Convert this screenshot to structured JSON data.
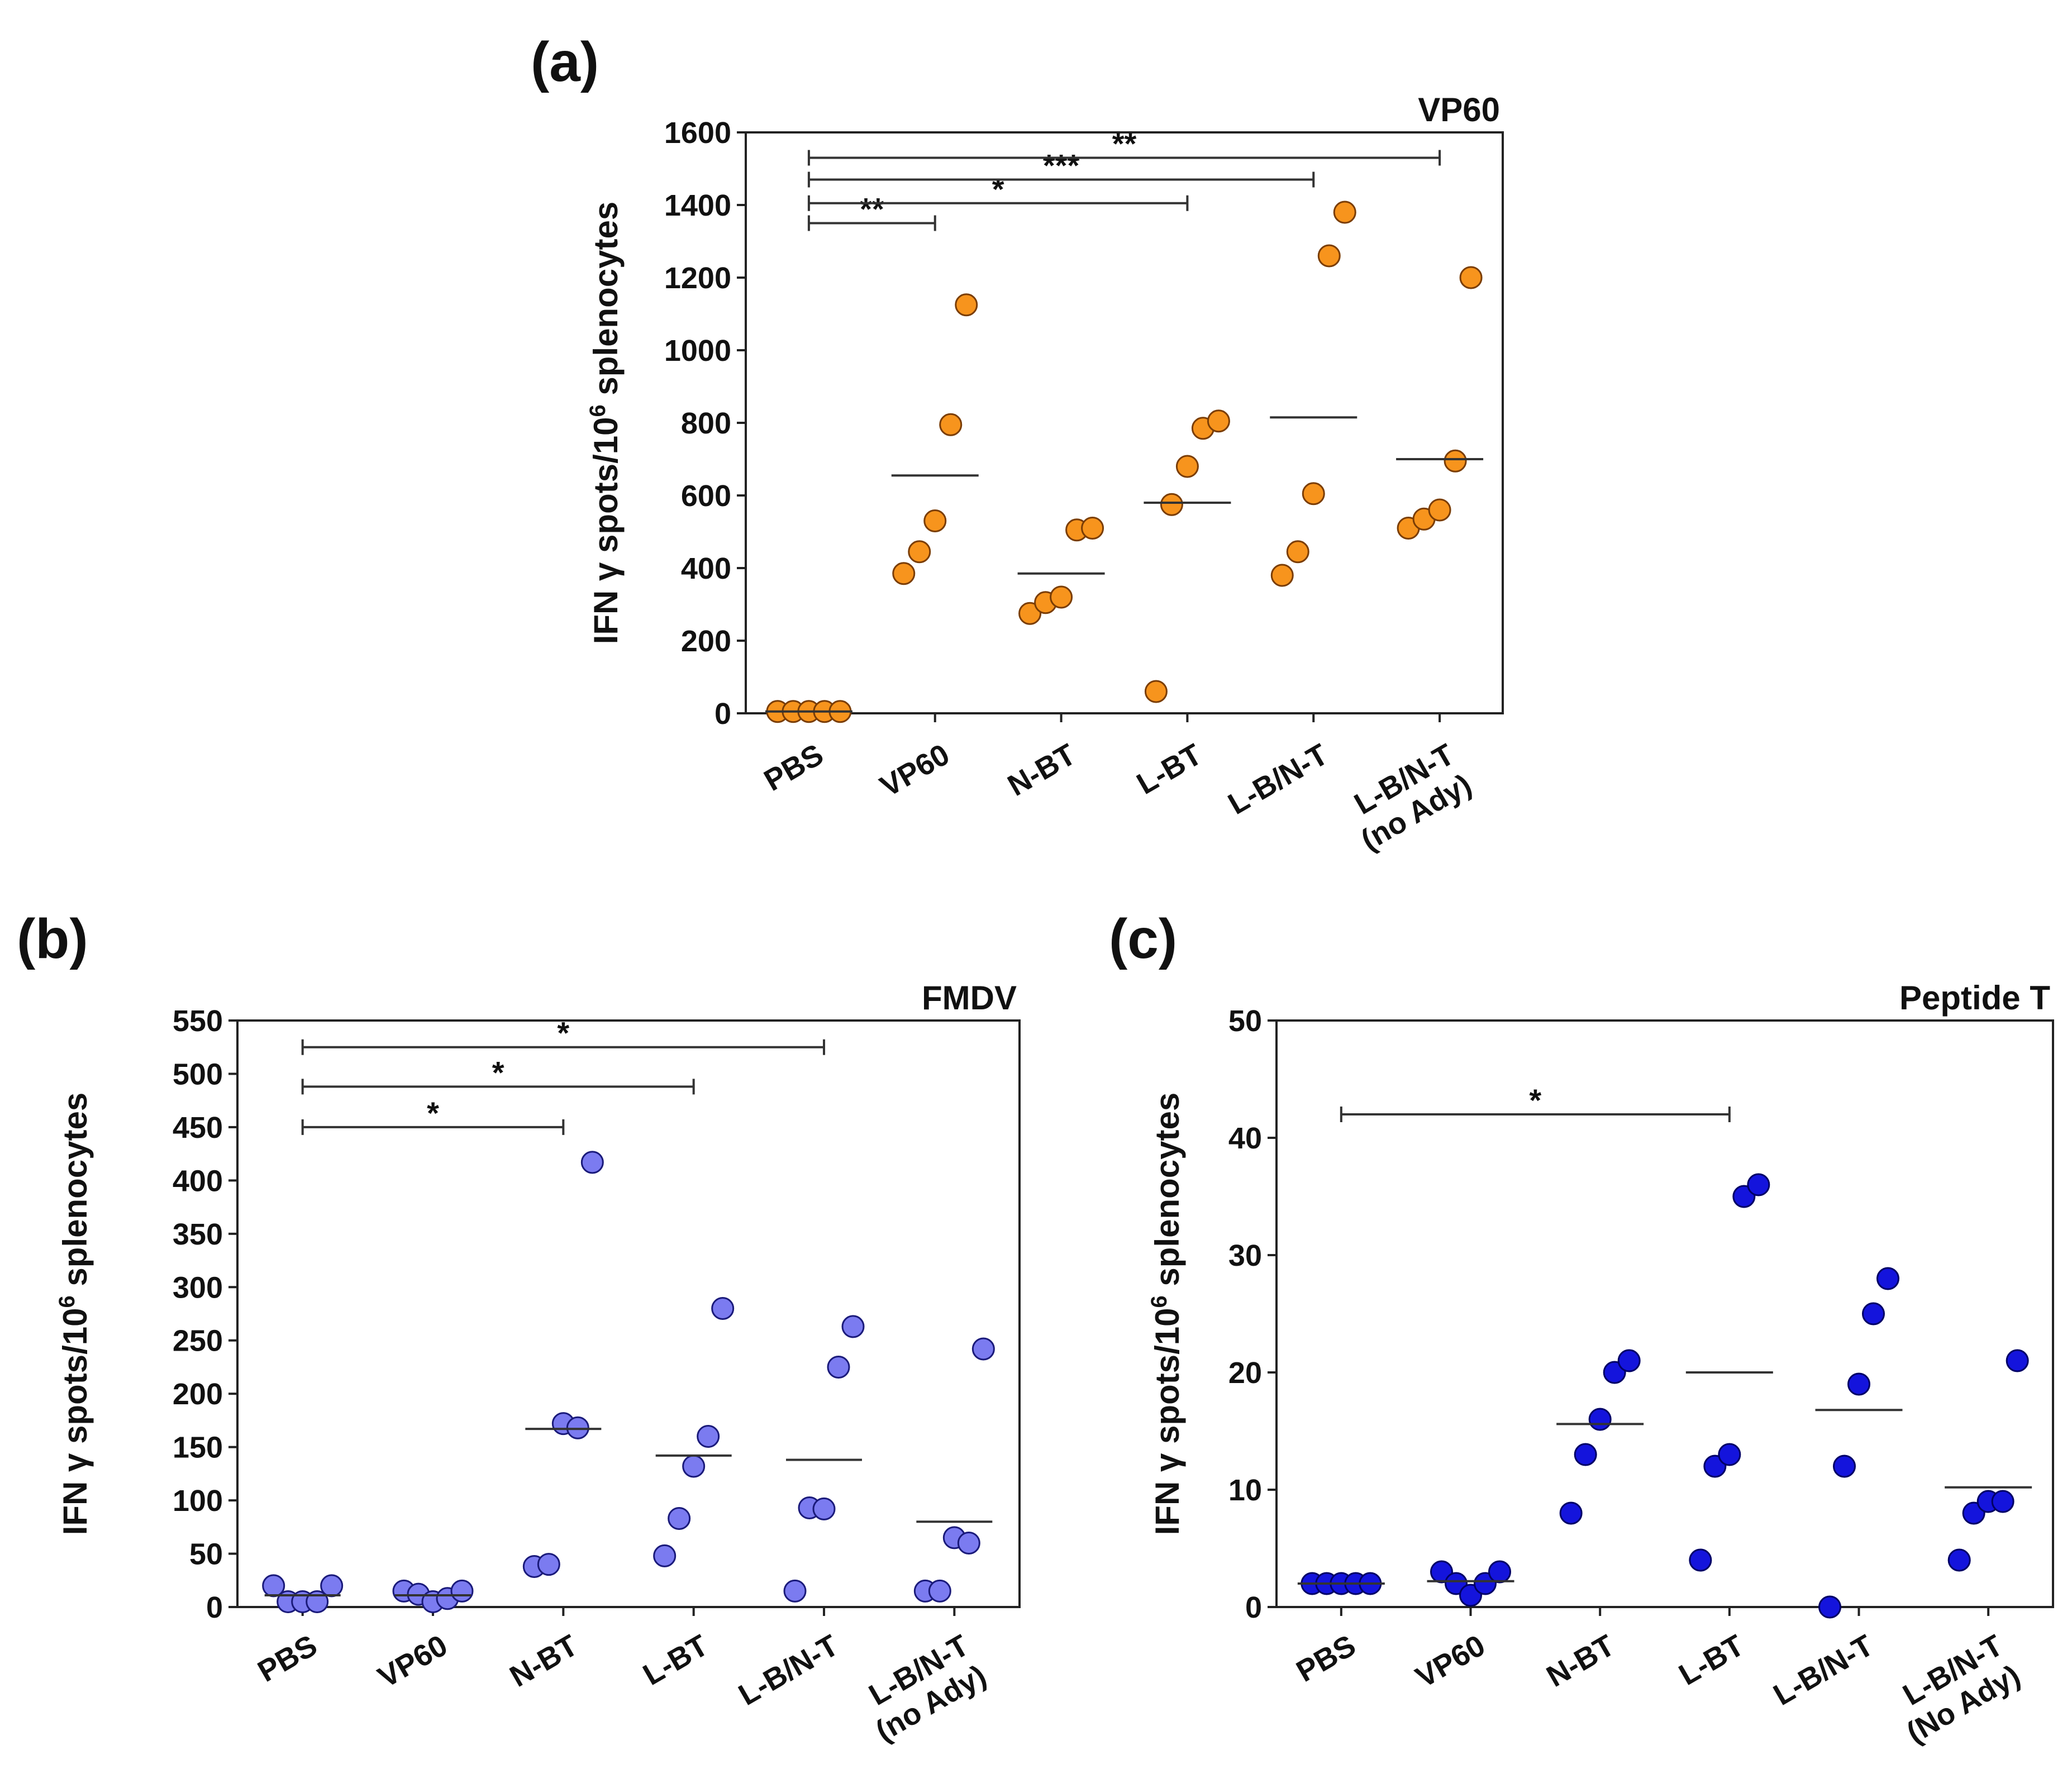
{
  "panels": [
    {
      "letter": "(a)",
      "ylabel_prefix": "IFN γ spots/10",
      "ylabel_sup": "6",
      "ylabel_suffix": " splenocytes",
      "point_fill": "#f7941d",
      "point_stroke": "#7a3d05",
      "chart_data": {
        "type": "scatter",
        "title": "VP60",
        "ylabel": "IFN γ spots/10^6 splenocytes",
        "ylim": [
          0,
          1600
        ],
        "yticks": [
          0,
          200,
          400,
          600,
          800,
          1000,
          1200,
          1400,
          1600
        ],
        "categories": [
          [
            "PBS"
          ],
          [
            "VP60"
          ],
          [
            "N-BT"
          ],
          [
            "L-BT"
          ],
          [
            "L-B/N-T"
          ],
          [
            "L-B/N-T",
            "(no Ady)"
          ]
        ],
        "values": [
          [
            5,
            5,
            5,
            5,
            5
          ],
          [
            385,
            445,
            530,
            795,
            1125
          ],
          [
            275,
            305,
            320,
            505,
            510
          ],
          [
            60,
            575,
            680,
            785,
            805
          ],
          [
            380,
            445,
            605,
            1260,
            1380
          ],
          [
            510,
            535,
            560,
            695,
            1200
          ]
        ],
        "means": [
          5,
          655,
          385,
          580,
          815,
          700
        ],
        "significance": [
          {
            "from": 0,
            "to": 1,
            "y": 1350,
            "label": "**"
          },
          {
            "from": 0,
            "to": 3,
            "y": 1405,
            "label": "*"
          },
          {
            "from": 0,
            "to": 4,
            "y": 1470,
            "label": "***"
          },
          {
            "from": 0,
            "to": 5,
            "y": 1530,
            "label": "**"
          }
        ]
      }
    },
    {
      "letter": "(b)",
      "ylabel_prefix": "IFN γ spots/10",
      "ylabel_sup": "6",
      "ylabel_suffix": " splenocytes",
      "point_fill": "#7b7bf0",
      "point_stroke": "#1a1a7a",
      "chart_data": {
        "type": "scatter",
        "title": "FMDV",
        "ylabel": "IFN γ spots/10^6 splenocytes",
        "ylim": [
          0,
          550
        ],
        "yticks": [
          0,
          50,
          100,
          150,
          200,
          250,
          300,
          350,
          400,
          450,
          500,
          550
        ],
        "categories": [
          [
            "PBS"
          ],
          [
            "VP60"
          ],
          [
            "N-BT"
          ],
          [
            "L-BT"
          ],
          [
            "L-B/N-T"
          ],
          [
            "L-B/N-T",
            "(no Ady)"
          ]
        ],
        "values": [
          [
            20,
            5,
            5,
            5,
            20
          ],
          [
            15,
            12,
            5,
            8,
            15
          ],
          [
            38,
            40,
            172,
            168,
            417
          ],
          [
            48,
            83,
            132,
            160,
            280
          ],
          [
            15,
            93,
            92,
            225,
            263
          ],
          [
            15,
            15,
            65,
            60,
            242
          ]
        ],
        "means": [
          11,
          11,
          167,
          142,
          138,
          80
        ],
        "significance": [
          {
            "from": 0,
            "to": 2,
            "y": 450,
            "label": "*"
          },
          {
            "from": 0,
            "to": 3,
            "y": 488,
            "label": "*"
          },
          {
            "from": 0,
            "to": 4,
            "y": 525,
            "label": "*"
          }
        ]
      }
    },
    {
      "letter": "(c)",
      "ylabel_prefix": "IFN γ spots/10",
      "ylabel_sup": "6",
      "ylabel_suffix": " splenocytes",
      "point_fill": "#1414dc",
      "point_stroke": "#000066",
      "chart_data": {
        "type": "scatter",
        "title": "Peptide T",
        "ylabel": "IFN γ spots/10^6 splenocytes",
        "ylim": [
          0,
          50
        ],
        "yticks": [
          0,
          10,
          20,
          30,
          40,
          50
        ],
        "categories": [
          [
            "PBS"
          ],
          [
            "VP60"
          ],
          [
            "N-BT"
          ],
          [
            "L-BT"
          ],
          [
            "L-B/N-T"
          ],
          [
            "L-B/N-T",
            "(No Ady)"
          ]
        ],
        "values": [
          [
            2,
            2,
            2,
            2,
            2
          ],
          [
            3,
            2,
            1,
            2,
            3
          ],
          [
            8,
            13,
            16,
            20,
            21
          ],
          [
            4,
            12,
            13,
            35,
            36
          ],
          [
            0,
            12,
            19,
            25,
            28
          ],
          [
            4,
            8,
            9,
            9,
            21
          ]
        ],
        "means": [
          2,
          2.2,
          15.6,
          20,
          16.8,
          10.2
        ],
        "significance": [
          {
            "from": 0,
            "to": 3,
            "y": 42,
            "label": "*"
          }
        ]
      }
    }
  ]
}
